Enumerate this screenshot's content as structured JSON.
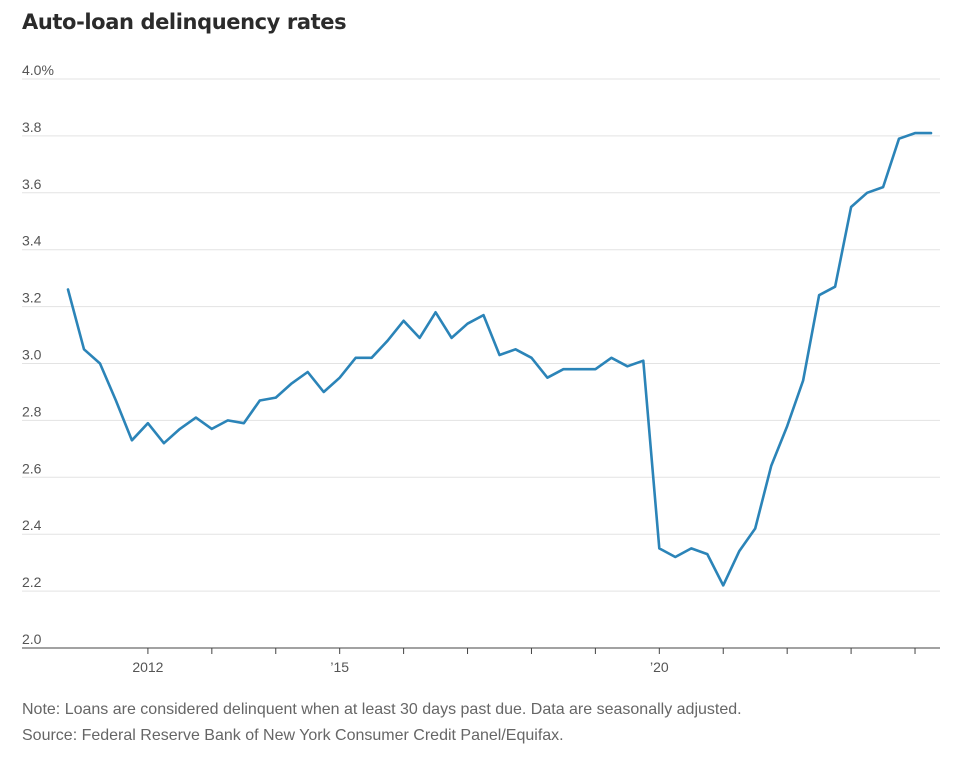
{
  "chart_data": {
    "type": "line",
    "title": "Auto-loan delinquency rates",
    "xlabel": "",
    "ylabel": "",
    "ylim": [
      2.0,
      4.0
    ],
    "yticks": [
      {
        "value": 4.0,
        "label": "4.0%"
      },
      {
        "value": 3.8,
        "label": "3.8"
      },
      {
        "value": 3.6,
        "label": "3.6"
      },
      {
        "value": 3.4,
        "label": "3.4"
      },
      {
        "value": 3.2,
        "label": "3.2"
      },
      {
        "value": 3.0,
        "label": "3.0"
      },
      {
        "value": 2.8,
        "label": "2.8"
      },
      {
        "value": 2.6,
        "label": "2.6"
      },
      {
        "value": 2.4,
        "label": "2.4"
      },
      {
        "value": 2.2,
        "label": "2.2"
      },
      {
        "value": 2.0,
        "label": "2.0"
      }
    ],
    "xlim": [
      2010.75,
      2024.25
    ],
    "xticks": [
      {
        "value": 2012,
        "label": "2012"
      },
      {
        "value": 2013,
        "label": ""
      },
      {
        "value": 2014,
        "label": ""
      },
      {
        "value": 2015,
        "label": "’15"
      },
      {
        "value": 2016,
        "label": ""
      },
      {
        "value": 2017,
        "label": ""
      },
      {
        "value": 2018,
        "label": ""
      },
      {
        "value": 2019,
        "label": ""
      },
      {
        "value": 2020,
        "label": "’20"
      },
      {
        "value": 2021,
        "label": ""
      },
      {
        "value": 2022,
        "label": ""
      },
      {
        "value": 2023,
        "label": ""
      },
      {
        "value": 2024,
        "label": ""
      }
    ],
    "series": [
      {
        "name": "Auto-loan delinquency rate (%)",
        "color": "#2b84b8",
        "x": [
          2010.75,
          2011.0,
          2011.25,
          2011.5,
          2011.75,
          2012.0,
          2012.25,
          2012.5,
          2012.75,
          2013.0,
          2013.25,
          2013.5,
          2013.75,
          2014.0,
          2014.25,
          2014.5,
          2014.75,
          2015.0,
          2015.25,
          2015.5,
          2015.75,
          2016.0,
          2016.25,
          2016.5,
          2016.75,
          2017.0,
          2017.25,
          2017.5,
          2017.75,
          2018.0,
          2018.25,
          2018.5,
          2018.75,
          2019.0,
          2019.25,
          2019.5,
          2019.75,
          2020.0,
          2020.25,
          2020.5,
          2020.75,
          2021.0,
          2021.25,
          2021.5,
          2021.75,
          2022.0,
          2022.25,
          2022.5,
          2022.75,
          2023.0,
          2023.25,
          2023.5,
          2023.75,
          2024.0,
          2024.25
        ],
        "values": [
          3.26,
          3.05,
          3.0,
          2.87,
          2.73,
          2.79,
          2.72,
          2.77,
          2.81,
          2.77,
          2.8,
          2.79,
          2.87,
          2.88,
          2.93,
          2.97,
          2.9,
          2.95,
          3.02,
          3.02,
          3.08,
          3.15,
          3.09,
          3.18,
          3.09,
          3.14,
          3.17,
          3.03,
          3.05,
          3.02,
          2.95,
          2.98,
          2.98,
          2.98,
          3.02,
          2.99,
          3.01,
          2.35,
          2.32,
          2.35,
          2.33,
          2.22,
          2.34,
          2.42,
          2.64,
          2.78,
          2.94,
          3.24,
          3.27,
          3.55,
          3.6,
          3.62,
          3.79,
          3.81,
          3.81
        ]
      }
    ],
    "notes": [
      "Note: Loans are considered delinquent when at least 30 days past due. Data are seasonally adjusted.",
      "Source: Federal Reserve Bank of New York Consumer Credit Panel/Equifax."
    ]
  }
}
